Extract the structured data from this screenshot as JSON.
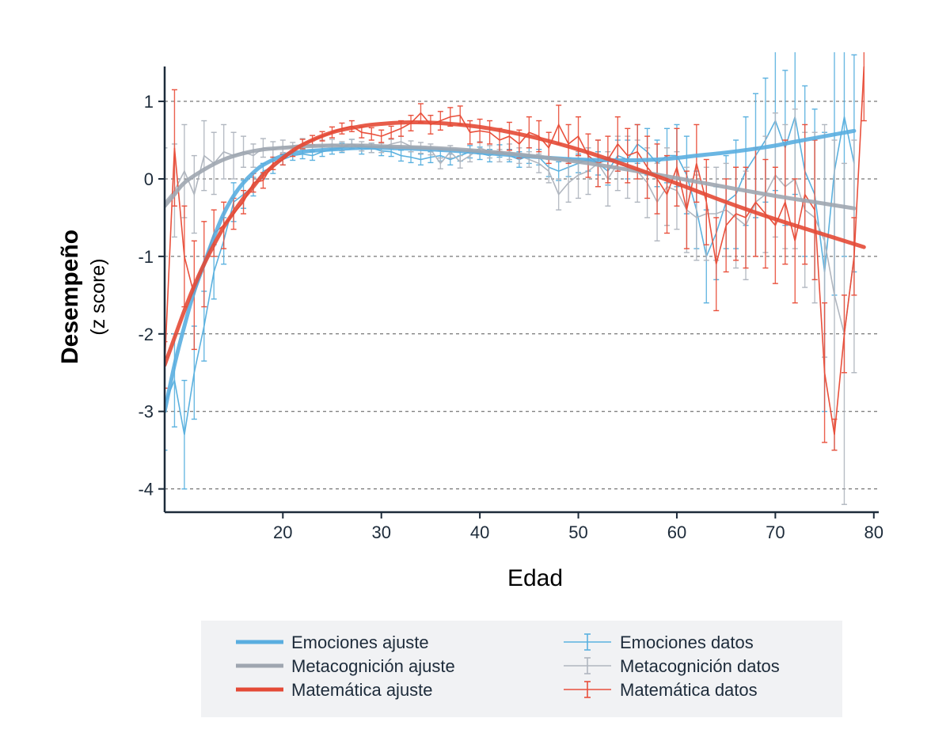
{
  "chart_data": {
    "type": "line",
    "xlabel": "Edad",
    "ylabel": "Desempeño",
    "ylabel_sub": "(z score)",
    "xlim": [
      8,
      80.5
    ],
    "ylim": [
      -4.3,
      1.45
    ],
    "xticks": [
      20,
      30,
      40,
      50,
      60,
      70,
      80
    ],
    "yticks": [
      1,
      0,
      -1,
      -2,
      -3,
      -4
    ],
    "grid": "horizontal dashed",
    "legend_position": "bottom",
    "colors": {
      "emociones": "#5bb1df",
      "emociones_fit": "#5aaee0",
      "metacognicion": "#b0b6bf",
      "metacognicion_fit": "#9fa6b0",
      "matematica": "#e9503c",
      "matematica_fit": "#e44a36",
      "axis": "#1d2b3a",
      "grid": "#555555"
    },
    "legend": [
      {
        "label": "Emociones ajuste",
        "kind": "fit",
        "series": "emociones"
      },
      {
        "label": "Metacognición ajuste",
        "kind": "fit",
        "series": "metacognicion"
      },
      {
        "label": "Matemática ajuste",
        "kind": "fit",
        "series": "matematica"
      },
      {
        "label": "Emociones datos",
        "kind": "data",
        "series": "emociones"
      },
      {
        "label": "Metacognición datos",
        "kind": "data",
        "series": "metacognicion"
      },
      {
        "label": "Matemática datos",
        "kind": "data",
        "series": "matematica"
      }
    ],
    "fits": [
      {
        "key": "emociones",
        "x": [
          8,
          9,
          10,
          11,
          12,
          13,
          14,
          15,
          16,
          17,
          18,
          20,
          22,
          25,
          28,
          30,
          35,
          40,
          45,
          50,
          55,
          58,
          60,
          62,
          65,
          68,
          70,
          72,
          75,
          78
        ],
        "y": [
          -3.0,
          -2.4,
          -1.9,
          -1.45,
          -1.1,
          -0.75,
          -0.45,
          -0.22,
          -0.05,
          0.08,
          0.18,
          0.3,
          0.35,
          0.38,
          0.4,
          0.4,
          0.38,
          0.34,
          0.29,
          0.25,
          0.24,
          0.25,
          0.27,
          0.3,
          0.34,
          0.39,
          0.43,
          0.48,
          0.55,
          0.62
        ]
      },
      {
        "key": "metacognicion",
        "x": [
          8,
          9,
          10,
          12,
          14,
          16,
          18,
          20,
          22,
          25,
          28,
          30,
          35,
          40,
          45,
          50,
          55,
          60,
          63,
          66,
          70,
          74,
          78
        ],
        "y": [
          -0.35,
          -0.2,
          -0.05,
          0.12,
          0.25,
          0.33,
          0.38,
          0.4,
          0.42,
          0.43,
          0.43,
          0.42,
          0.4,
          0.36,
          0.3,
          0.22,
          0.12,
          0.01,
          -0.06,
          -0.13,
          -0.22,
          -0.3,
          -0.38
        ]
      },
      {
        "key": "matematica",
        "x": [
          8,
          9,
          10,
          11,
          12,
          13,
          14,
          15,
          16,
          17,
          18,
          20,
          22,
          25,
          28,
          30,
          33,
          36,
          40,
          45,
          50,
          55,
          60,
          65,
          70,
          75,
          79
        ],
        "y": [
          -2.4,
          -2.05,
          -1.7,
          -1.38,
          -1.1,
          -0.85,
          -0.62,
          -0.43,
          -0.25,
          -0.1,
          0.05,
          0.27,
          0.44,
          0.6,
          0.68,
          0.71,
          0.73,
          0.72,
          0.67,
          0.55,
          0.38,
          0.17,
          -0.06,
          -0.3,
          -0.52,
          -0.72,
          -0.88
        ]
      }
    ],
    "data_series": [
      {
        "key": "emociones",
        "x": [
          8,
          9,
          10,
          11,
          12,
          13,
          14,
          15,
          16,
          17,
          18,
          19,
          20,
          21,
          22,
          23,
          24,
          25,
          26,
          27,
          28,
          29,
          30,
          31,
          32,
          33,
          34,
          35,
          36,
          37,
          38,
          39,
          40,
          41,
          42,
          43,
          44,
          45,
          46,
          47,
          48,
          49,
          50,
          51,
          52,
          53,
          54,
          55,
          56,
          57,
          58,
          59,
          60,
          61,
          62,
          63,
          64,
          65,
          66,
          67,
          68,
          69,
          70,
          71,
          72,
          73,
          74,
          75,
          76,
          77,
          78
        ],
        "y": [
          -2.9,
          -2.6,
          -3.3,
          -2.5,
          -1.9,
          -1.2,
          -0.8,
          -0.3,
          -0.2,
          -0.1,
          0.1,
          0.15,
          0.25,
          0.3,
          0.32,
          0.3,
          0.35,
          0.38,
          0.4,
          0.45,
          0.38,
          0.4,
          0.36,
          0.35,
          0.3,
          0.28,
          0.25,
          0.28,
          0.3,
          0.25,
          0.3,
          0.35,
          0.33,
          0.3,
          0.36,
          0.3,
          0.25,
          0.3,
          0.28,
          0.15,
          0.1,
          0.15,
          0.2,
          0.25,
          0.2,
          0.1,
          0.3,
          0.25,
          0.45,
          0.35,
          0.2,
          0.3,
          0.3,
          0.05,
          -0.4,
          -1.0,
          -0.7,
          -0.3,
          -0.2,
          0.1,
          0.3,
          0.5,
          0.75,
          0.4,
          0.8,
          0.1,
          -0.2,
          -1.2,
          0.1,
          0.8,
          0.2
        ],
        "err": [
          0.6,
          0.6,
          0.7,
          0.6,
          0.45,
          0.35,
          0.3,
          0.25,
          0.18,
          0.12,
          0.1,
          0.08,
          0.07,
          0.06,
          0.06,
          0.06,
          0.06,
          0.06,
          0.06,
          0.06,
          0.06,
          0.06,
          0.06,
          0.06,
          0.07,
          0.07,
          0.07,
          0.07,
          0.07,
          0.07,
          0.07,
          0.08,
          0.08,
          0.08,
          0.08,
          0.08,
          0.1,
          0.1,
          0.1,
          0.12,
          0.12,
          0.12,
          0.12,
          0.15,
          0.15,
          0.18,
          0.2,
          0.25,
          0.25,
          0.3,
          0.3,
          0.35,
          0.4,
          0.5,
          0.5,
          0.6,
          0.6,
          0.6,
          0.7,
          0.7,
          0.8,
          0.8,
          0.9,
          1.0,
          1.0,
          1.1,
          1.1,
          1.8,
          1.6,
          1.8,
          1.4
        ]
      },
      {
        "key": "metacognicion",
        "x": [
          8,
          9,
          10,
          11,
          12,
          13,
          14,
          15,
          16,
          17,
          18,
          19,
          20,
          21,
          22,
          23,
          24,
          25,
          26,
          27,
          28,
          29,
          30,
          31,
          32,
          33,
          34,
          35,
          36,
          37,
          38,
          39,
          40,
          41,
          42,
          43,
          44,
          45,
          46,
          47,
          48,
          49,
          50,
          51,
          52,
          53,
          54,
          55,
          56,
          57,
          58,
          59,
          60,
          61,
          62,
          63,
          64,
          65,
          66,
          67,
          68,
          69,
          70,
          71,
          72,
          73,
          74,
          75,
          76,
          77,
          78
        ],
        "y": [
          -0.3,
          -0.15,
          0.1,
          -0.2,
          0.3,
          0.2,
          0.35,
          0.3,
          0.35,
          0.3,
          0.4,
          0.38,
          0.42,
          0.4,
          0.45,
          0.42,
          0.43,
          0.45,
          0.42,
          0.45,
          0.42,
          0.4,
          0.4,
          0.45,
          0.48,
          0.42,
          0.4,
          0.38,
          0.2,
          0.35,
          0.22,
          0.3,
          0.4,
          0.35,
          0.3,
          0.35,
          0.3,
          0.25,
          0.2,
          0.1,
          -0.2,
          -0.05,
          0.05,
          0.1,
          0.2,
          0.0,
          0.2,
          0.15,
          0.1,
          -0.05,
          -0.3,
          -0.1,
          -0.15,
          -0.4,
          -0.5,
          -0.45,
          -0.45,
          -0.4,
          -0.5,
          -0.6,
          -0.3,
          -0.2,
          0.05,
          -0.1,
          0.0,
          -0.4,
          -0.5,
          -0.8,
          -1.5,
          -2.0,
          -1.0
        ],
        "err": [
          0.7,
          0.6,
          0.6,
          0.5,
          0.45,
          0.4,
          0.35,
          0.3,
          0.2,
          0.15,
          0.12,
          0.1,
          0.08,
          0.07,
          0.07,
          0.07,
          0.07,
          0.06,
          0.06,
          0.06,
          0.06,
          0.06,
          0.06,
          0.06,
          0.07,
          0.07,
          0.07,
          0.07,
          0.07,
          0.08,
          0.08,
          0.08,
          0.08,
          0.08,
          0.08,
          0.1,
          0.1,
          0.1,
          0.12,
          0.15,
          0.2,
          0.25,
          0.3,
          0.3,
          0.3,
          0.35,
          0.35,
          0.4,
          0.4,
          0.45,
          0.5,
          0.5,
          0.5,
          0.55,
          0.55,
          0.6,
          0.6,
          0.6,
          0.65,
          0.7,
          0.7,
          0.75,
          0.8,
          0.8,
          0.9,
          1.0,
          1.1,
          1.5,
          2.0,
          2.2,
          1.5
        ]
      },
      {
        "key": "matematica",
        "x": [
          8,
          9,
          10,
          11,
          12,
          13,
          14,
          15,
          16,
          17,
          18,
          19,
          20,
          21,
          22,
          23,
          24,
          25,
          26,
          27,
          28,
          29,
          30,
          31,
          32,
          33,
          34,
          35,
          36,
          37,
          38,
          39,
          40,
          41,
          42,
          43,
          44,
          45,
          46,
          47,
          48,
          49,
          50,
          51,
          52,
          53,
          54,
          55,
          56,
          57,
          58,
          59,
          60,
          61,
          62,
          63,
          64,
          65,
          66,
          67,
          68,
          69,
          70,
          71,
          72,
          73,
          74,
          75,
          76,
          77,
          78,
          79
        ],
        "y": [
          -2.4,
          0.4,
          -1.0,
          -1.5,
          -1.1,
          -0.7,
          -0.6,
          -0.45,
          -0.3,
          -0.05,
          -0.02,
          0.2,
          0.25,
          0.35,
          0.45,
          0.5,
          0.55,
          0.6,
          0.65,
          0.68,
          0.6,
          0.58,
          0.55,
          0.6,
          0.65,
          0.72,
          0.85,
          0.7,
          0.75,
          0.8,
          0.82,
          0.6,
          0.62,
          0.6,
          0.5,
          0.55,
          0.45,
          0.6,
          0.55,
          0.4,
          0.7,
          0.45,
          0.55,
          0.3,
          0.2,
          0.25,
          0.45,
          0.3,
          0.35,
          0.15,
          0.0,
          -0.2,
          0.15,
          -0.4,
          0.2,
          -0.3,
          -1.1,
          -0.6,
          -0.45,
          -0.5,
          -0.3,
          -0.45,
          -0.6,
          -0.3,
          -0.8,
          -0.2,
          -0.4,
          -2.5,
          -3.3,
          -2.0,
          -1.0,
          1.45
        ],
        "err": [
          0.3,
          0.75,
          0.65,
          0.7,
          0.55,
          0.3,
          0.3,
          0.2,
          0.15,
          0.12,
          0.1,
          0.08,
          0.07,
          0.06,
          0.06,
          0.06,
          0.06,
          0.07,
          0.07,
          0.07,
          0.07,
          0.08,
          0.08,
          0.08,
          0.1,
          0.1,
          0.12,
          0.12,
          0.12,
          0.12,
          0.12,
          0.15,
          0.15,
          0.15,
          0.15,
          0.18,
          0.18,
          0.2,
          0.2,
          0.2,
          0.25,
          0.25,
          0.25,
          0.28,
          0.3,
          0.3,
          0.35,
          0.35,
          0.35,
          0.4,
          0.45,
          0.5,
          0.5,
          0.5,
          0.5,
          0.55,
          0.6,
          0.6,
          0.6,
          0.65,
          0.7,
          0.7,
          0.75,
          0.8,
          0.8,
          0.9,
          0.9,
          0.9,
          0.2,
          0.5,
          0.5,
          0.7
        ]
      }
    ]
  }
}
